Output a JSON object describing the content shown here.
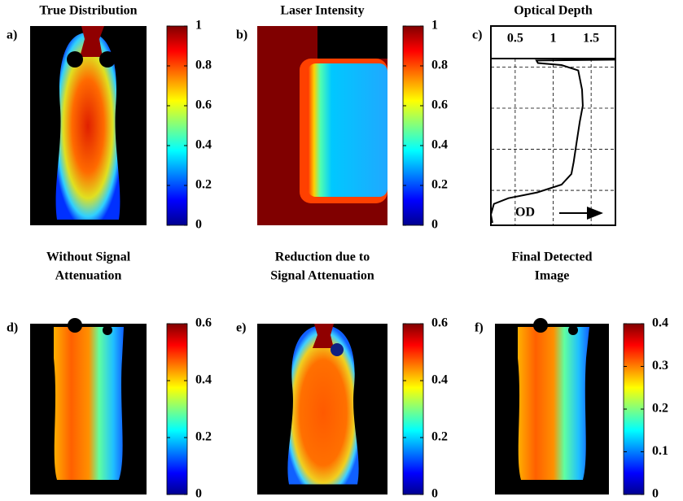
{
  "chart_data": [
    {
      "type": "heatmap",
      "title": "True Distribution",
      "panel_label": "a)",
      "clim": [
        0,
        1
      ],
      "cticks": [
        0,
        0.2,
        0.4,
        0.6,
        0.8,
        1
      ]
    },
    {
      "type": "heatmap",
      "title": "Laser Intensity",
      "panel_label": "b)",
      "clim": [
        0,
        1
      ],
      "cticks": [
        0,
        0.2,
        0.4,
        0.6,
        0.8,
        1
      ]
    },
    {
      "type": "line",
      "title": "Optical Depth",
      "panel_label": "c)",
      "annotation": "OD",
      "x": [
        1.82,
        0.78,
        0.8,
        1.11,
        1.33,
        1.38,
        1.39,
        1.35,
        1.31,
        1.27,
        1.24,
        1.11,
        0.79,
        0.41,
        0.22,
        0.18,
        0.2
      ],
      "y": [
        0.82,
        0.84,
        0.9,
        0.95,
        1.08,
        1.55,
        1.94,
        2.33,
        2.82,
        3.31,
        3.6,
        3.86,
        4.05,
        4.19,
        4.33,
        4.59,
        4.79
      ],
      "xlim": [
        0.18,
        1.82
      ],
      "xticks": [
        0.5,
        1,
        1.5
      ],
      "ylim": [
        4.85,
        0
      ],
      "yticks": [
        1,
        2,
        3,
        4
      ],
      "grid": true,
      "color": "#000000"
    },
    {
      "type": "heatmap",
      "title": [
        "Without Signal",
        "Attenuation"
      ],
      "panel_label": "d)",
      "clim": [
        0,
        0.6
      ],
      "cticks": [
        0,
        0.2,
        0.4,
        0.6
      ]
    },
    {
      "type": "heatmap",
      "title": [
        "Reduction due to",
        "Signal Attenuation"
      ],
      "panel_label": "e)",
      "clim": [
        0,
        0.6
      ],
      "cticks": [
        0,
        0.2,
        0.4,
        0.6
      ]
    },
    {
      "type": "heatmap",
      "title": [
        "Final Detected",
        "Image"
      ],
      "panel_label": "f)",
      "clim": [
        0,
        0.4
      ],
      "cticks": [
        0,
        0.1,
        0.2,
        0.3,
        0.4
      ]
    }
  ]
}
